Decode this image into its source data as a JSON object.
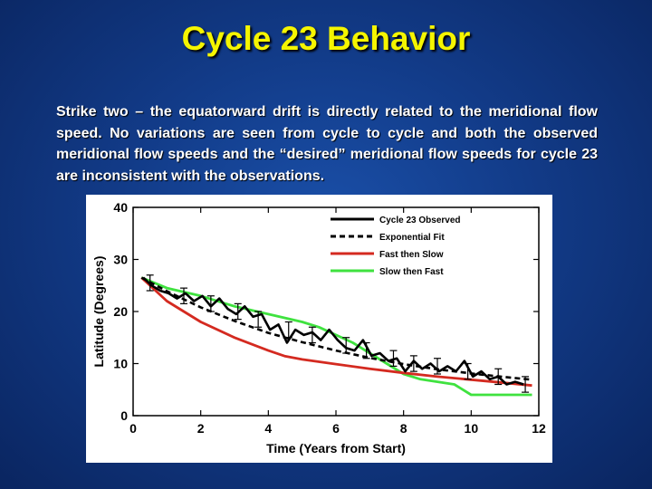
{
  "slide": {
    "title": "Cycle 23 Behavior",
    "body": "Strike two – the equatorward drift is directly related to the meridional flow speed. No variations are seen from cycle to cycle and both the observed meridional flow speeds and the “desired” meridional flow speeds for cycle 23 are inconsistent with the observations."
  },
  "colors": {
    "background": "#123b88",
    "title": "#f5f500",
    "observed": "#000000",
    "fit": "#000000",
    "fast_then_slow": "#d42a20",
    "slow_then_fast": "#3fe23f"
  },
  "chart_data": {
    "type": "line",
    "title": "",
    "xlabel": "Time (Years from Start)",
    "ylabel": "Latitude (Degrees)",
    "xlim": [
      0,
      12
    ],
    "ylim": [
      0,
      40
    ],
    "xticks": [
      0,
      2,
      4,
      6,
      8,
      10,
      12
    ],
    "yticks": [
      0,
      10,
      20,
      30,
      40
    ],
    "legend_position": "top-right",
    "series": [
      {
        "name": "Cycle 23 Observed",
        "style": "solid",
        "color": "#000000",
        "x": [
          0.3,
          0.55,
          0.8,
          1.05,
          1.3,
          1.55,
          1.8,
          2.05,
          2.3,
          2.55,
          2.8,
          3.05,
          3.3,
          3.55,
          3.8,
          4.05,
          4.3,
          4.55,
          4.8,
          5.05,
          5.3,
          5.55,
          5.8,
          6.05,
          6.3,
          6.55,
          6.8,
          7.05,
          7.3,
          7.55,
          7.8,
          8.05,
          8.3,
          8.55,
          8.8,
          9.05,
          9.3,
          9.55,
          9.8,
          10.05,
          10.3,
          10.55,
          10.8,
          11.05,
          11.3,
          11.55
        ],
        "y": [
          26.5,
          25.0,
          24.0,
          23.5,
          22.5,
          23.5,
          22.0,
          23.0,
          21.0,
          22.5,
          20.5,
          19.5,
          21.0,
          19.0,
          19.5,
          16.5,
          17.5,
          14.0,
          16.5,
          15.5,
          16.0,
          14.5,
          16.5,
          14.5,
          13.0,
          12.5,
          14.5,
          11.5,
          12.0,
          10.5,
          11.0,
          8.5,
          10.5,
          9.0,
          10.0,
          8.5,
          9.5,
          8.5,
          10.5,
          7.5,
          8.5,
          7.0,
          7.5,
          6.0,
          6.5,
          6.0
        ]
      },
      {
        "name": "Exponential Fit",
        "style": "dashed",
        "color": "#000000",
        "x": [
          0.25,
          1,
          2,
          3,
          4,
          5,
          6,
          7,
          8,
          9,
          10,
          11,
          11.8
        ],
        "y": [
          26.5,
          23.9,
          20.8,
          18.2,
          15.9,
          14.1,
          12.5,
          11.1,
          9.9,
          8.9,
          8.1,
          7.4,
          6.9
        ]
      },
      {
        "name": "Fast then Slow",
        "style": "solid",
        "color": "#d42a20",
        "x": [
          0.25,
          1,
          2,
          3,
          4,
          4.5,
          5,
          6,
          7,
          8,
          9,
          10,
          11,
          11.8
        ],
        "y": [
          26.5,
          22.0,
          18.0,
          15.0,
          12.5,
          11.4,
          10.8,
          9.9,
          9.0,
          8.2,
          7.5,
          6.9,
          6.3,
          5.8
        ]
      },
      {
        "name": "Slow then Fast",
        "style": "solid",
        "color": "#3fe23f",
        "x": [
          0.25,
          1,
          2,
          3,
          4,
          5,
          5.5,
          6,
          6.5,
          7,
          7.5,
          8,
          8.5,
          9,
          9.5,
          10,
          10.5,
          11,
          11.8
        ],
        "y": [
          26.5,
          24.5,
          23.0,
          21.0,
          19.5,
          18.0,
          17.0,
          15.5,
          14.0,
          12.0,
          10.0,
          8.0,
          7.0,
          6.5,
          6.0,
          4.0,
          4.0,
          4.0,
          4.0
        ]
      }
    ],
    "error_bars": {
      "series": "Cycle 23 Observed",
      "points": [
        {
          "x": 0.5,
          "y": 25.5,
          "err": 1.5
        },
        {
          "x": 1.5,
          "y": 23.0,
          "err": 1.5
        },
        {
          "x": 2.3,
          "y": 21.5,
          "err": 1.5
        },
        {
          "x": 3.1,
          "y": 20.0,
          "err": 1.5
        },
        {
          "x": 3.7,
          "y": 18.5,
          "err": 1.5
        },
        {
          "x": 4.6,
          "y": 16.5,
          "err": 1.5
        },
        {
          "x": 5.3,
          "y": 15.5,
          "err": 1.5
        },
        {
          "x": 6.3,
          "y": 13.5,
          "err": 1.5
        },
        {
          "x": 6.9,
          "y": 12.5,
          "err": 1.5
        },
        {
          "x": 7.7,
          "y": 11.0,
          "err": 1.5
        },
        {
          "x": 8.3,
          "y": 10.0,
          "err": 1.5
        },
        {
          "x": 9.0,
          "y": 9.5,
          "err": 1.5
        },
        {
          "x": 9.9,
          "y": 8.5,
          "err": 1.5
        },
        {
          "x": 10.8,
          "y": 7.5,
          "err": 1.5
        },
        {
          "x": 11.6,
          "y": 6.0,
          "err": 1.5
        }
      ]
    }
  }
}
